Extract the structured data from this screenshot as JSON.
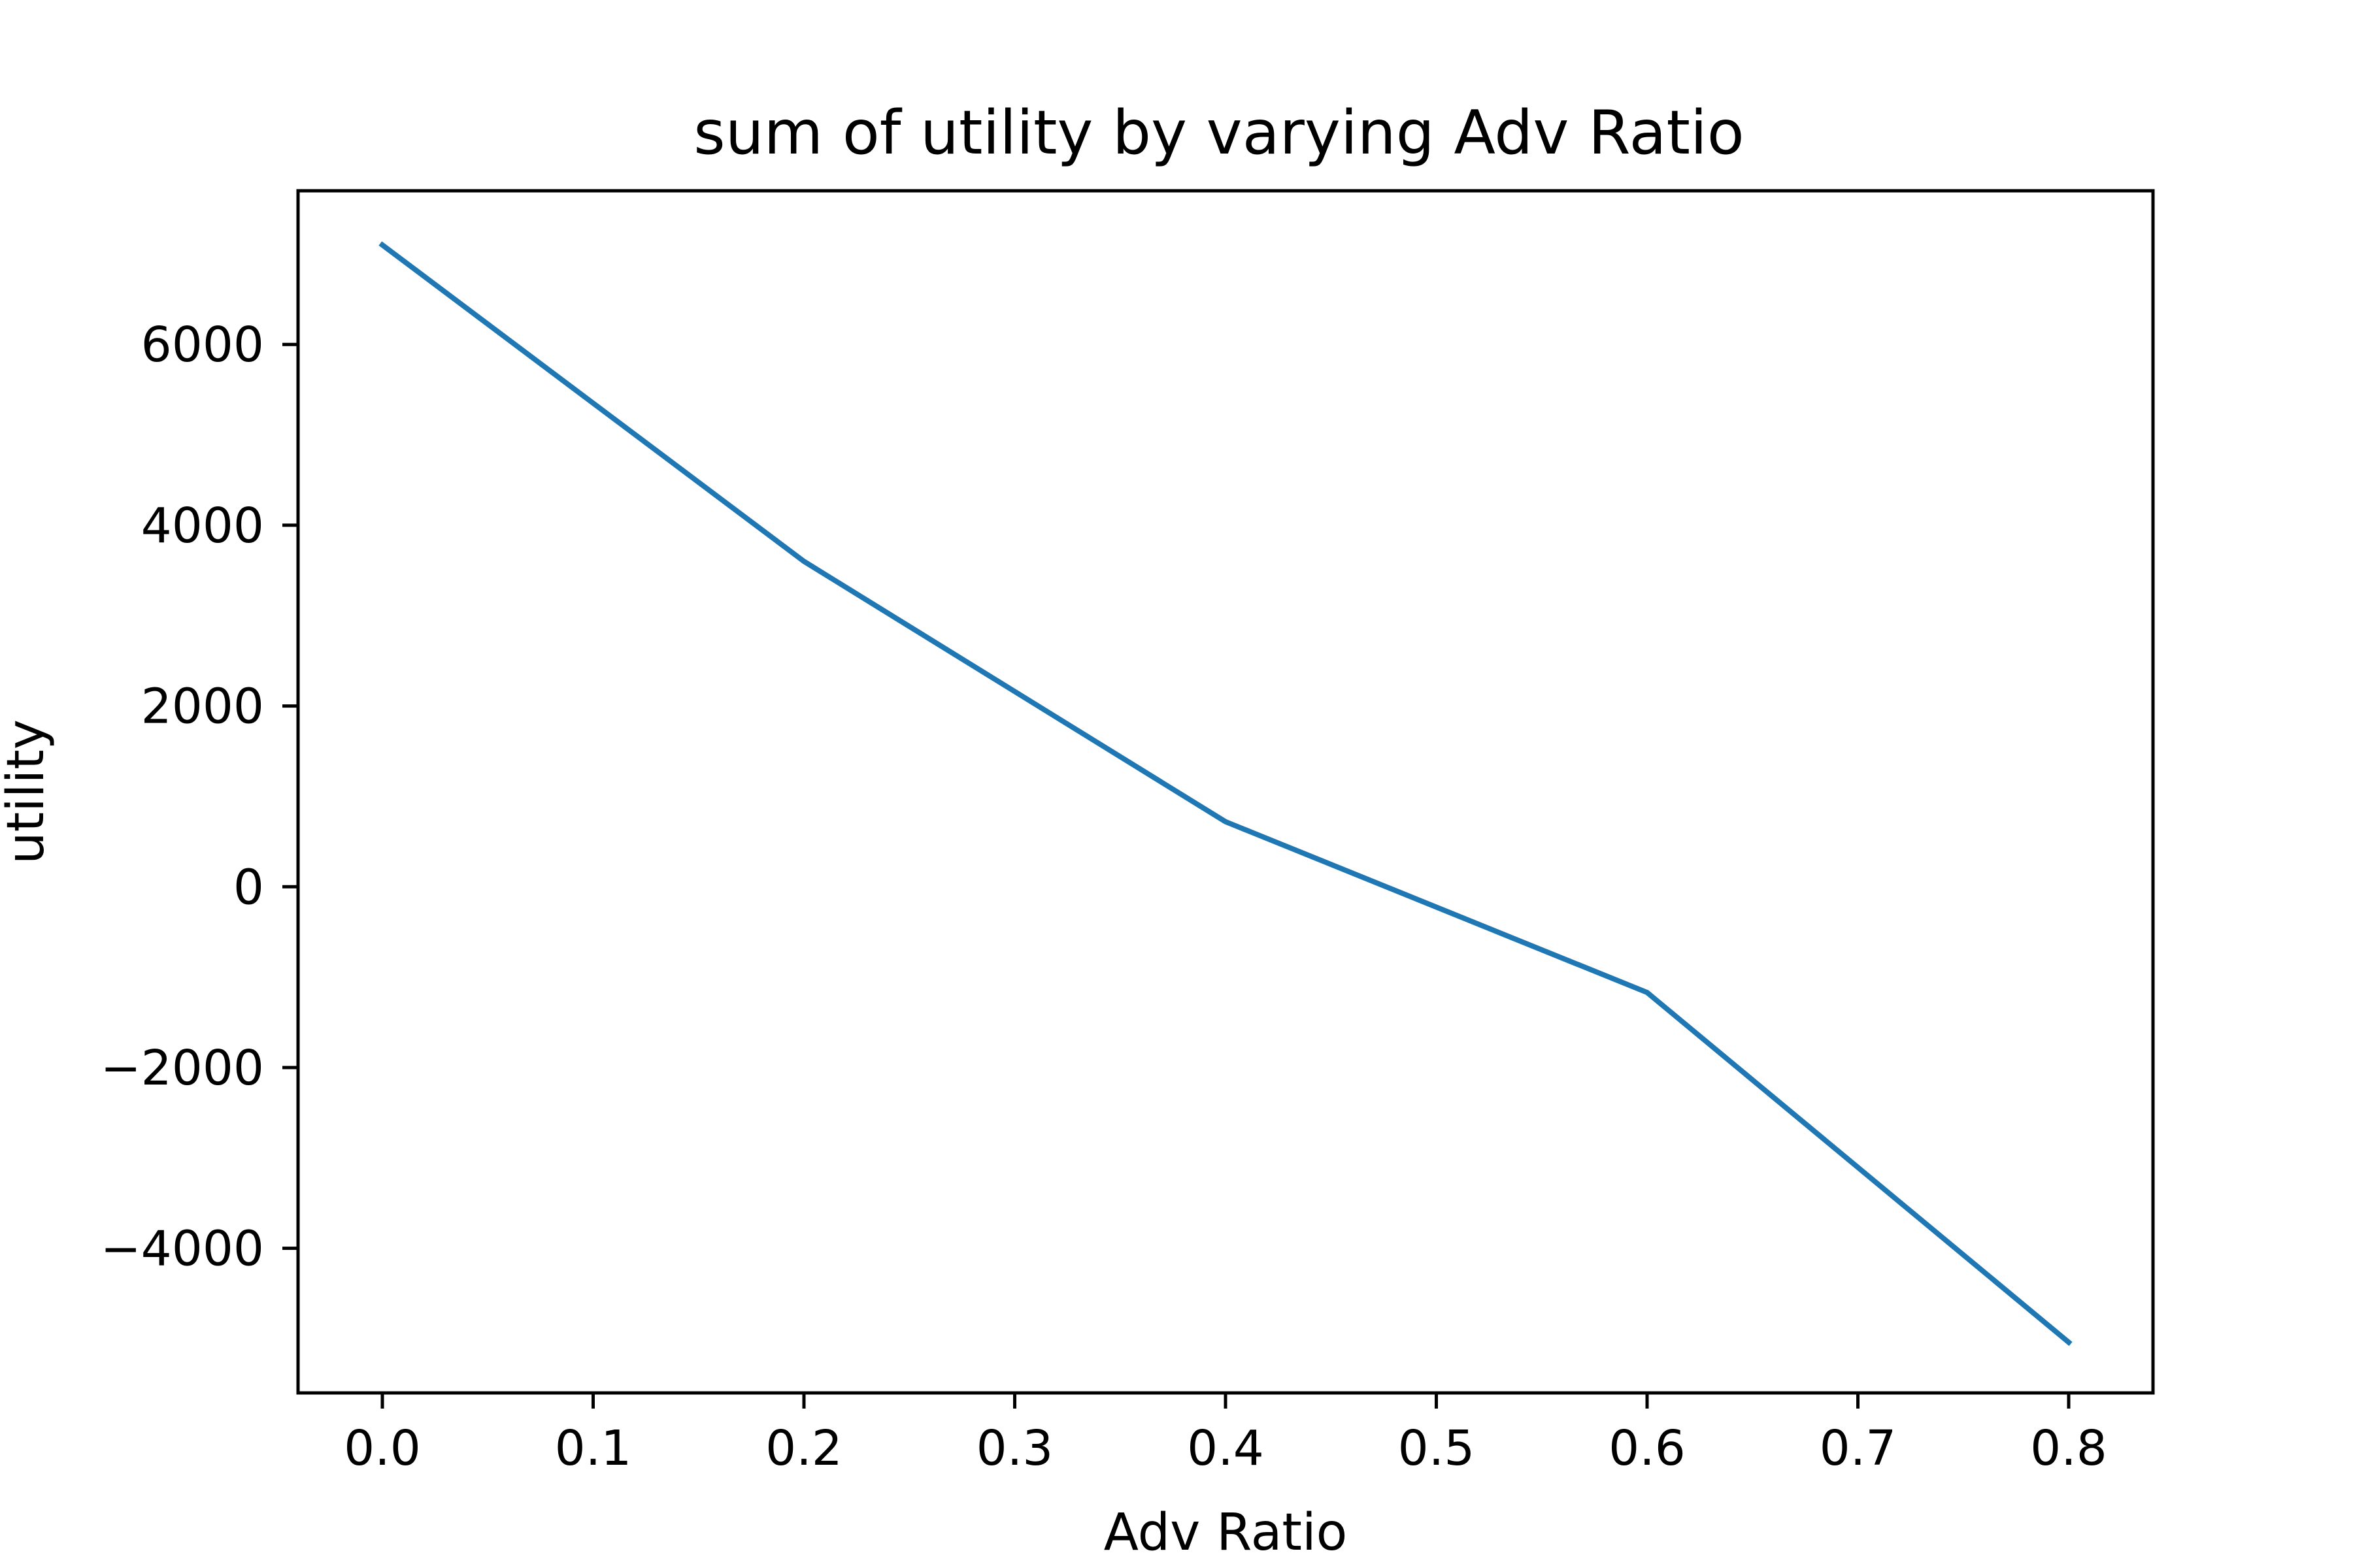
{
  "chart_data": {
    "type": "line",
    "title": "sum of utility by varying Adv Ratio",
    "xlabel": "Adv Ratio",
    "ylabel": "utility",
    "x": [
      0.0,
      0.2,
      0.4,
      0.6,
      0.8
    ],
    "series": [
      {
        "values": [
          7100,
          3600,
          720,
          -1170,
          -5040
        ],
        "color": "#1f77b4"
      }
    ],
    "xlim": [
      -0.04,
      0.84
    ],
    "ylim": [
      -5600,
      7700
    ],
    "xticks": [
      0.0,
      0.1,
      0.2,
      0.3,
      0.4,
      0.5,
      0.6,
      0.7,
      0.8
    ],
    "xtick_labels": [
      "0.0",
      "0.1",
      "0.2",
      "0.3",
      "0.4",
      "0.5",
      "0.6",
      "0.7",
      "0.8"
    ],
    "yticks": [
      -4000,
      -2000,
      0,
      2000,
      4000,
      6000
    ],
    "ytick_labels": [
      "−4000",
      "−2000",
      "0",
      "2000",
      "4000",
      "6000"
    ],
    "grid": false,
    "legend": false
  }
}
